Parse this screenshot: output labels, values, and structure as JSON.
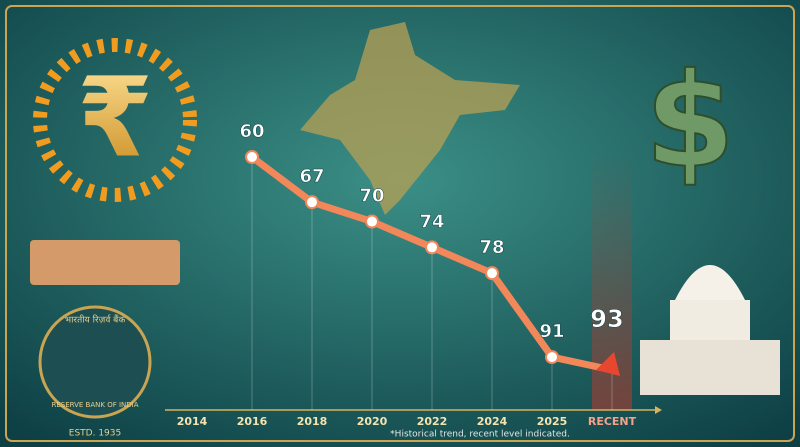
{
  "chart_data": {
    "type": "line",
    "categories": [
      "2014",
      "2016",
      "2018",
      "2020",
      "2022",
      "2024",
      "2025",
      "RECENT"
    ],
    "values": [
      null,
      60,
      67,
      70,
      74,
      78,
      91,
      93
    ],
    "color": "#f2875a",
    "inverted": true,
    "footnote": "*Historical trend, recent level indicated."
  },
  "illustration": {
    "rupee_symbol": "₹",
    "dollar_symbol": "$",
    "bank_name": "RESERVE BANK OF INDIA",
    "bank_name_hindi": "भारतीय रिज़र्व बैंक",
    "established": "ESTD. 1935"
  }
}
